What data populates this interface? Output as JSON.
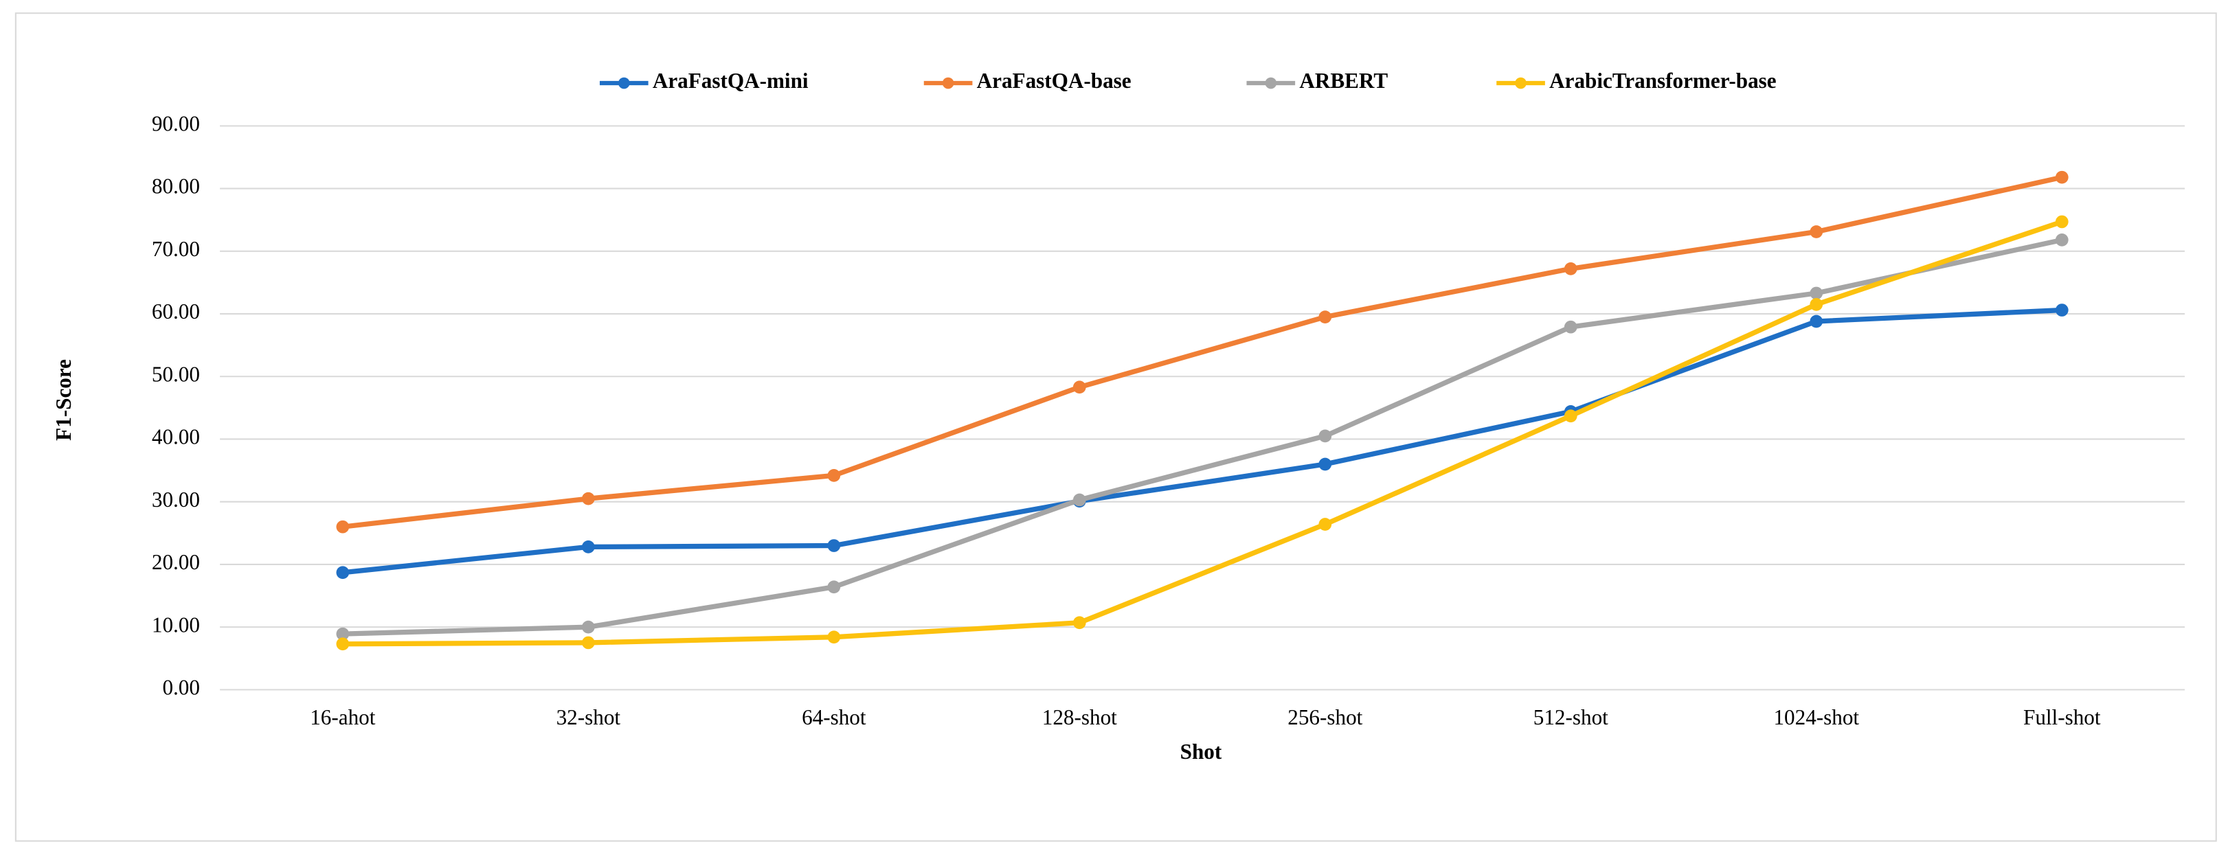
{
  "chart_data": {
    "type": "line",
    "xlabel": "Shot",
    "ylabel": "F1-Score",
    "categories": [
      "16-ahot",
      "32-shot",
      "64-shot",
      "128-shot",
      "256-shot",
      "512-shot",
      "1024-shot",
      "Full-shot"
    ],
    "series": [
      {
        "name": "AraFastQA-mini",
        "color": "#1f6fc5",
        "values": [
          18.7,
          22.8,
          23.0,
          30.1,
          36.0,
          44.4,
          58.8,
          60.6
        ]
      },
      {
        "name": "AraFastQA-base",
        "color": "#f07f35",
        "values": [
          26.0,
          30.5,
          34.2,
          48.3,
          59.5,
          67.2,
          73.1,
          81.8
        ]
      },
      {
        "name": "ARBERT",
        "color": "#a5a5a5",
        "values": [
          8.9,
          10.0,
          16.4,
          30.3,
          40.5,
          57.9,
          63.3,
          71.8
        ]
      },
      {
        "name": "ArabicTransformer-base",
        "color": "#fcc10e",
        "values": [
          7.3,
          7.5,
          8.4,
          10.7,
          26.4,
          43.7,
          61.5,
          74.7
        ]
      }
    ],
    "ylim": [
      0,
      90
    ],
    "yticks": [
      {
        "value": 0,
        "label": "0.00"
      },
      {
        "value": 10,
        "label": "10.00"
      },
      {
        "value": 20,
        "label": "20.00"
      },
      {
        "value": 30,
        "label": "30.00"
      },
      {
        "value": 40,
        "label": "40.00"
      },
      {
        "value": 50,
        "label": "50.00"
      },
      {
        "value": 60,
        "label": "60.00"
      },
      {
        "value": 70,
        "label": "70.00"
      },
      {
        "value": 80,
        "label": "80.00"
      },
      {
        "value": 90,
        "label": "90.00"
      }
    ],
    "grid": true,
    "legend": "top"
  }
}
